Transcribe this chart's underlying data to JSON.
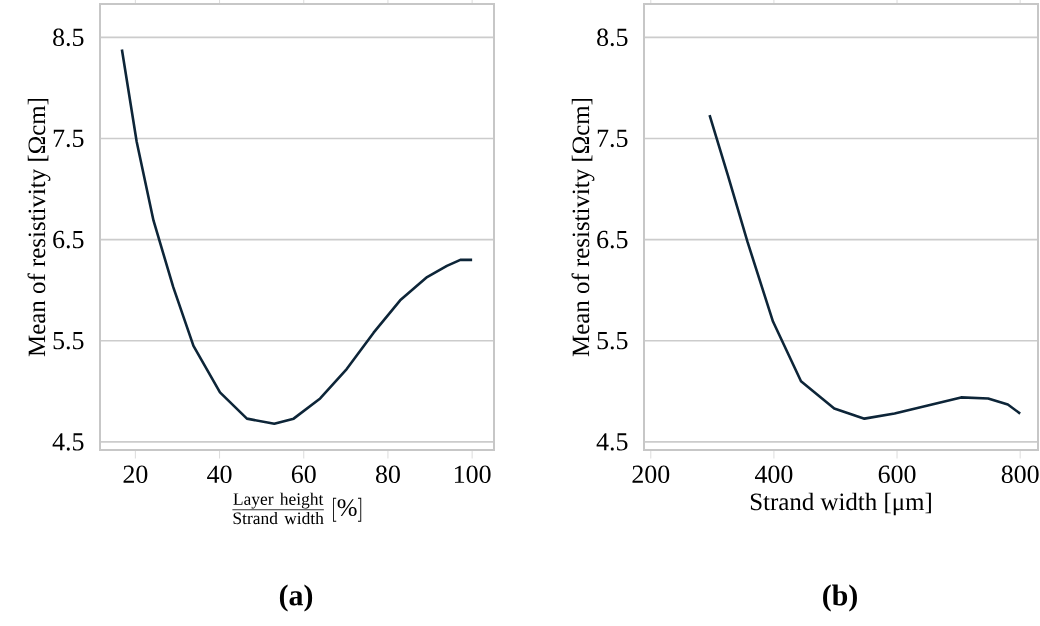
{
  "chart_data": [
    {
      "type": "line",
      "xlabel": "\\frac{\\mathrm{Layer\\ height}}{\\mathrm{Strand\\ width}}\\,[\\%]",
      "ylabel": "Mean of resistivity [Ωcm]",
      "annotations": [
        "(a)"
      ],
      "xlim": [
        11.6,
        105.2
      ],
      "ylim": [
        4.42,
        8.83
      ],
      "xticks": [
        20,
        40,
        60,
        80,
        100
      ],
      "yticks": [
        4.5,
        5.5,
        6.5,
        7.5,
        8.5
      ],
      "grid": "y",
      "series": [
        {
          "color": "#0d2538",
          "x": [
            16.8,
            20.3,
            24.3,
            29,
            33.8,
            40.1,
            46.5,
            53,
            57.6,
            63.9,
            70.2,
            76.6,
            82.9,
            89.3,
            94,
            97.2,
            100
          ],
          "values": [
            8.38,
            7.47,
            6.69,
            6.03,
            5.45,
            4.99,
            4.73,
            4.68,
            4.73,
            4.93,
            5.22,
            5.58,
            5.9,
            6.13,
            6.24,
            6.3,
            6.3
          ]
        }
      ]
    },
    {
      "type": "line",
      "xlabel": "Strand width [μm]",
      "ylabel": "Mean of resistivity [Ωcm]",
      "annotations": [
        "(b)"
      ],
      "xlim": [
        189,
        829
      ],
      "ylim": [
        4.42,
        8.83
      ],
      "xticks": [
        200,
        400,
        600,
        800
      ],
      "yticks": [
        4.5,
        5.5,
        6.5,
        7.5,
        8.5
      ],
      "grid": "y",
      "series": [
        {
          "color": "#0d2538",
          "x": [
            295.5,
            325,
            357,
            398.5,
            444,
            498,
            547,
            596,
            650,
            704,
            748,
            780,
            800
          ],
          "values": [
            7.73,
            7.14,
            6.48,
            5.69,
            5.1,
            4.83,
            4.73,
            4.78,
            4.86,
            4.94,
            4.93,
            4.87,
            4.78
          ]
        }
      ]
    }
  ]
}
